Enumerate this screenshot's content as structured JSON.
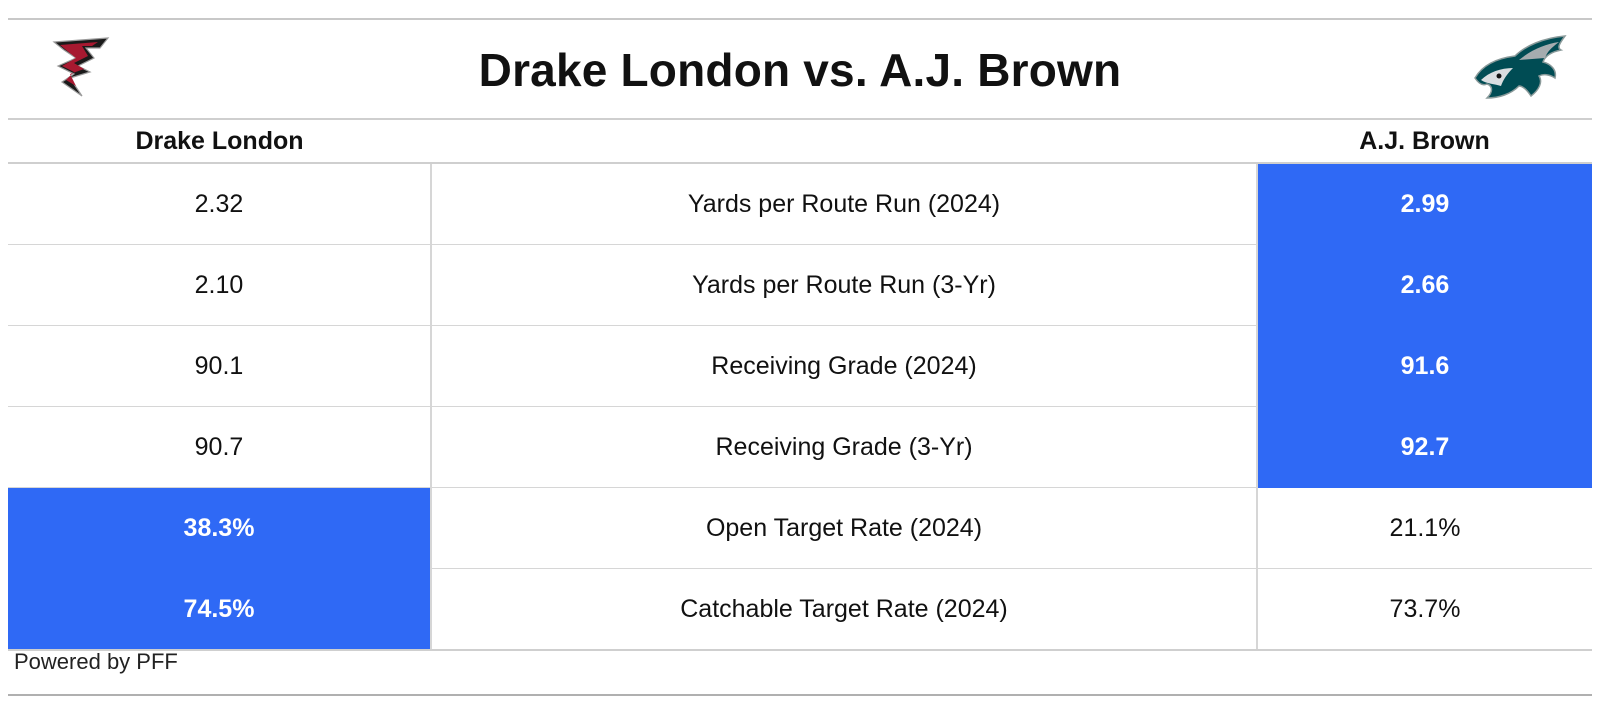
{
  "title": "Drake London vs. A.J. Brown",
  "header": {
    "left_player": "Drake London",
    "right_player": "A.J. Brown",
    "left_logo_icon": "falcons-logo-icon",
    "right_logo_icon": "eagles-logo-icon"
  },
  "rows": [
    {
      "metric": "Yards per Route Run (2024)",
      "left": "2.32",
      "right": "2.99",
      "winner": "right"
    },
    {
      "metric": "Yards per Route Run (3-Yr)",
      "left": "2.10",
      "right": "2.66",
      "winner": "right"
    },
    {
      "metric": "Receiving Grade (2024)",
      "left": "90.1",
      "right": "91.6",
      "winner": "right"
    },
    {
      "metric": "Receiving Grade (3-Yr)",
      "left": "90.7",
      "right": "92.7",
      "winner": "right"
    },
    {
      "metric": "Open Target Rate (2024)",
      "left": "38.3%",
      "right": "21.1%",
      "winner": "left"
    },
    {
      "metric": "Catchable Target Rate (2024)",
      "left": "74.5%",
      "right": "73.7%",
      "winner": "left"
    }
  ],
  "footer": "Powered by PFF",
  "colors": {
    "highlight": "#2f69f5",
    "highlight_text": "#ffffff",
    "rule": "#c8c8c8",
    "falcons_red": "#a71930",
    "eagles_green": "#004c54"
  }
}
